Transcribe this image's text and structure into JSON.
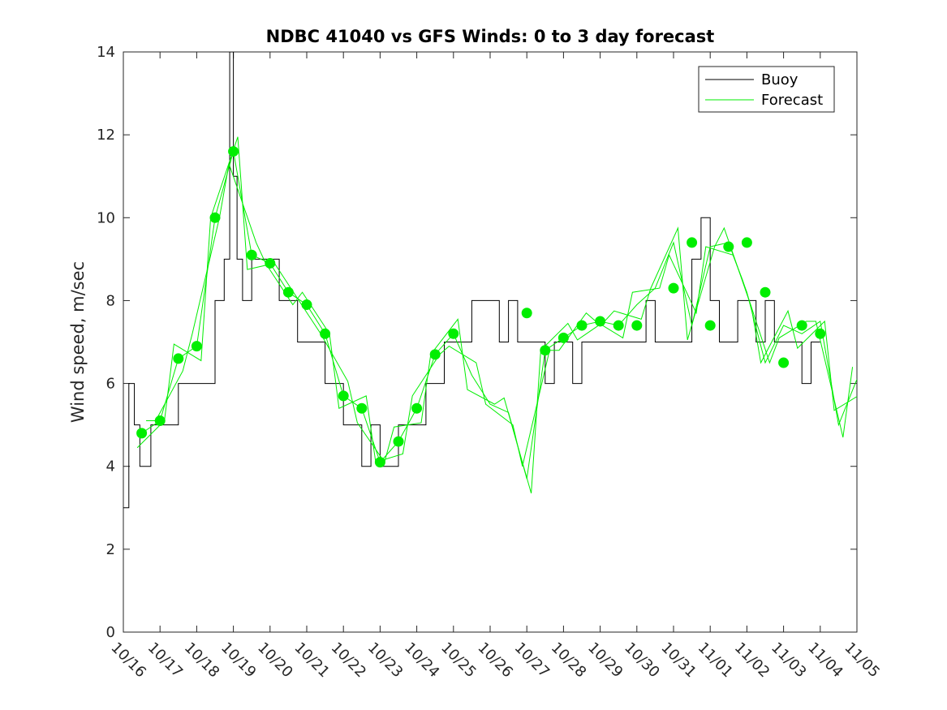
{
  "chart_data": {
    "type": "line",
    "title": "NDBC 41040 vs GFS Winds: 0 to 3 day forecast",
    "xlabel": "",
    "ylabel": "Wind speed, m/sec",
    "ylim": [
      0,
      14
    ],
    "xlim": [
      0,
      20
    ],
    "y_ticks": [
      0,
      2,
      4,
      6,
      8,
      10,
      12,
      14
    ],
    "x_tick_labels": [
      "10/16",
      "10/17",
      "10/18",
      "10/19",
      "10/20",
      "10/21",
      "10/22",
      "10/23",
      "10/24",
      "10/25",
      "10/26",
      "10/27",
      "10/28",
      "10/29",
      "10/30",
      "10/31",
      "11/01",
      "11/02",
      "11/03",
      "11/04",
      "11/05"
    ],
    "legend": {
      "position": "top-right",
      "entries": [
        {
          "label": "Buoy",
          "color": "#000000"
        },
        {
          "label": "Forecast",
          "color": "#00ee00"
        }
      ]
    },
    "series": [
      {
        "name": "Buoy",
        "color": "#000000",
        "x": [
          0.0,
          0.15,
          0.3,
          0.45,
          0.6,
          0.75,
          0.9,
          1.0,
          1.25,
          1.5,
          1.75,
          2.0,
          2.25,
          2.5,
          2.75,
          2.9,
          3.0,
          3.1,
          3.25,
          3.5,
          3.75,
          4.0,
          4.25,
          4.5,
          4.75,
          5.0,
          5.25,
          5.5,
          5.75,
          6.0,
          6.25,
          6.5,
          6.75,
          7.0,
          7.25,
          7.5,
          7.75,
          8.0,
          8.25,
          8.5,
          8.75,
          9.0,
          9.25,
          9.5,
          9.75,
          10.0,
          10.25,
          10.5,
          10.75,
          11.0,
          11.25,
          11.5,
          11.75,
          12.0,
          12.25,
          12.5,
          12.75,
          13.0,
          13.25,
          13.5,
          13.75,
          14.0,
          14.25,
          14.5,
          14.75,
          15.0,
          15.25,
          15.5,
          15.75,
          16.0,
          16.25,
          16.5,
          16.75,
          17.0,
          17.25,
          17.5,
          17.75,
          18.0,
          18.25,
          18.5,
          18.75,
          19.0
        ],
        "values": [
          3,
          6,
          5,
          4,
          4,
          5,
          5,
          5,
          5,
          6,
          6,
          6,
          6,
          8,
          9,
          14,
          11,
          9,
          8,
          9,
          9,
          9,
          8,
          8,
          7,
          7,
          7,
          6,
          6,
          5,
          5,
          4,
          5,
          4,
          4,
          5,
          5,
          5,
          6,
          6,
          7,
          7,
          7,
          8,
          8,
          8,
          7,
          8,
          7,
          7,
          7,
          6,
          7,
          7,
          6,
          7,
          7,
          7,
          7,
          7,
          7,
          7,
          8,
          7,
          7,
          7,
          7,
          9,
          10,
          8,
          7,
          7,
          8,
          8,
          7,
          8,
          7,
          7,
          7,
          6,
          7,
          7
        ]
      },
      {
        "name": "Forecast",
        "color": "#00ee00",
        "x": [
          0.5,
          1.0,
          1.5,
          2.0,
          2.5,
          3.0,
          3.5,
          4.0,
          4.5,
          5.0,
          5.5,
          6.0,
          6.5,
          7.0,
          7.5,
          8.0,
          8.5,
          9.0,
          9.5,
          10.0,
          10.5,
          11.0,
          11.5,
          12.0,
          12.5,
          13.0,
          13.5,
          14.0,
          14.5,
          15.0,
          15.5,
          16.0,
          16.5,
          17.0,
          17.5,
          18.0,
          18.5,
          19.0,
          19.5,
          20.0
        ],
        "values": [
          4.8,
          5.1,
          6.6,
          6.9,
          10.0,
          11.6,
          9.1,
          8.9,
          8.2,
          7.9,
          7.2,
          5.7,
          5.4,
          4.1,
          4.6,
          5.4,
          6.7,
          7.2,
          6.2,
          5.5,
          5.3,
          3.7,
          6.8,
          7.1,
          7.4,
          7.5,
          7.4,
          7.9,
          8.3,
          9.4,
          7.4,
          9.3,
          9.4,
          8.2,
          6.5,
          7.4,
          7.2,
          7.5,
          5.0,
          6.1
        ]
      },
      {
        "name": "Forecast markers",
        "color": "#00ee00",
        "x": [
          0.5,
          1.0,
          1.5,
          2.0,
          2.5,
          3.0,
          3.5,
          4.0,
          4.5,
          5.0,
          5.5,
          6.0,
          6.5,
          7.0,
          7.5,
          8.0,
          8.5,
          9.0,
          11.0,
          11.5,
          12.0,
          12.5,
          13.0,
          13.5,
          14.0,
          15.0,
          15.5,
          16.0,
          16.5,
          17.0,
          17.5,
          18.0,
          18.5,
          19.0
        ],
        "values": [
          4.8,
          5.1,
          6.6,
          6.9,
          10.0,
          11.6,
          9.1,
          8.9,
          8.2,
          7.9,
          7.2,
          5.7,
          5.4,
          4.1,
          4.6,
          5.4,
          6.7,
          7.2,
          7.7,
          6.8,
          7.1,
          7.4,
          7.5,
          7.4,
          7.4,
          8.3,
          9.4,
          7.4,
          9.3,
          9.4,
          8.2,
          6.5,
          7.4,
          7.2
        ]
      }
    ]
  }
}
